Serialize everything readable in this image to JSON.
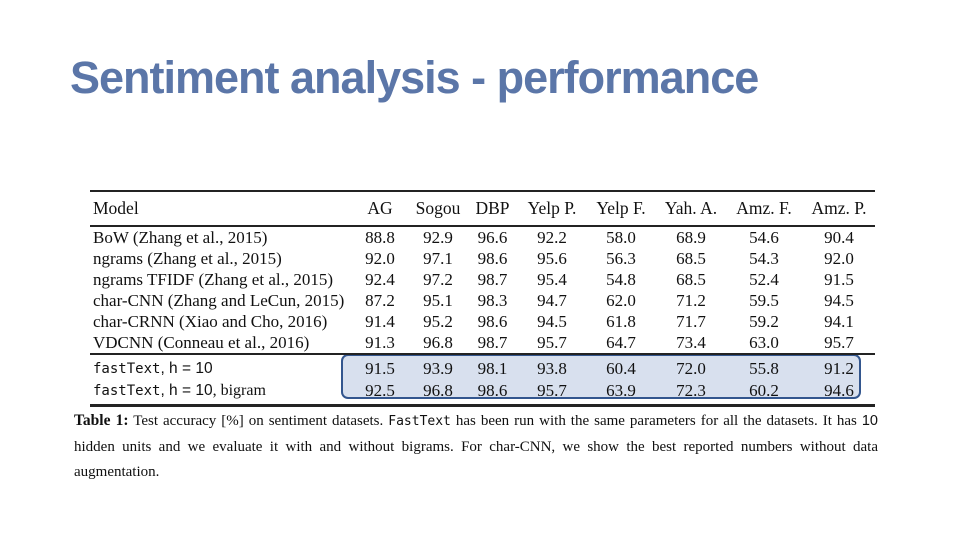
{
  "slide": {
    "title": "Sentiment analysis - performance"
  },
  "colors": {
    "title": "#5b76a8",
    "highlight_fill": "#d8e0ee",
    "highlight_border": "#33568e"
  },
  "table": {
    "columns": [
      "Model",
      "AG",
      "Sogou",
      "DBP",
      "Yelp P.",
      "Yelp F.",
      "Yah. A.",
      "Amz. F.",
      "Amz. P."
    ],
    "rows": [
      {
        "model": "BoW (Zhang et al., 2015)",
        "values": [
          "88.8",
          "92.9",
          "96.6",
          "92.2",
          "58.0",
          "68.9",
          "54.6",
          "90.4"
        ]
      },
      {
        "model": "ngrams (Zhang et al., 2015)",
        "values": [
          "92.0",
          "97.1",
          "98.6",
          "95.6",
          "56.3",
          "68.5",
          "54.3",
          "92.0"
        ]
      },
      {
        "model": "ngrams TFIDF (Zhang et al., 2015)",
        "values": [
          "92.4",
          "97.2",
          "98.7",
          "95.4",
          "54.8",
          "68.5",
          "52.4",
          "91.5"
        ]
      },
      {
        "model": "char-CNN (Zhang and LeCun, 2015)",
        "values": [
          "87.2",
          "95.1",
          "98.3",
          "94.7",
          "62.0",
          "71.2",
          "59.5",
          "94.5"
        ]
      },
      {
        "model": "char-CRNN (Xiao and Cho, 2016)",
        "values": [
          "91.4",
          "95.2",
          "98.6",
          "94.5",
          "61.8",
          "71.7",
          "59.2",
          "94.1"
        ]
      },
      {
        "model": "VDCNN (Conneau et al., 2016)",
        "values": [
          "91.3",
          "96.8",
          "98.7",
          "95.7",
          "64.7",
          "73.4",
          "63.0",
          "95.7"
        ]
      }
    ],
    "fasttext_rows": [
      {
        "mono": "fastText",
        "sans": ", h = 10",
        "serif": "",
        "values": [
          "91.5",
          "93.9",
          "98.1",
          "93.8",
          "60.4",
          "72.0",
          "55.8",
          "91.2"
        ]
      },
      {
        "mono": "fastText",
        "sans": ", h = 10",
        "serif": ", bigram",
        "values": [
          "92.5",
          "96.8",
          "98.6",
          "95.7",
          "63.9",
          "72.3",
          "60.2",
          "94.6"
        ]
      }
    ]
  },
  "caption": {
    "label": "Table 1:",
    "seg1": " Test accuracy [%] on sentiment datasets. ",
    "code": "FastText",
    "seg2": " has been run with the same parameters for all the datasets. It has ",
    "num": "10",
    "seg3": " hidden units and we evaluate it with and without bigrams. For char-CNN, we show the best reported numbers without data augmentation."
  },
  "chart_data": {
    "type": "table",
    "title": "Table 1: Test accuracy [%] on sentiment datasets",
    "columns": [
      "Model",
      "AG",
      "Sogou",
      "DBP",
      "Yelp P.",
      "Yelp F.",
      "Yah. A.",
      "Amz. F.",
      "Amz. P."
    ],
    "rows": [
      [
        "BoW (Zhang et al., 2015)",
        88.8,
        92.9,
        96.6,
        92.2,
        58.0,
        68.9,
        54.6,
        90.4
      ],
      [
        "ngrams (Zhang et al., 2015)",
        92.0,
        97.1,
        98.6,
        95.6,
        56.3,
        68.5,
        54.3,
        92.0
      ],
      [
        "ngrams TFIDF (Zhang et al., 2015)",
        92.4,
        97.2,
        98.7,
        95.4,
        54.8,
        68.5,
        52.4,
        91.5
      ],
      [
        "char-CNN (Zhang and LeCun, 2015)",
        87.2,
        95.1,
        98.3,
        94.7,
        62.0,
        71.2,
        59.5,
        94.5
      ],
      [
        "char-CRNN (Xiao and Cho, 2016)",
        91.4,
        95.2,
        98.6,
        94.5,
        61.8,
        71.7,
        59.2,
        94.1
      ],
      [
        "VDCNN (Conneau et al., 2016)",
        91.3,
        96.8,
        98.7,
        95.7,
        64.7,
        73.4,
        63.0,
        95.7
      ],
      [
        "fastText, h = 10",
        91.5,
        93.9,
        98.1,
        93.8,
        60.4,
        72.0,
        55.8,
        91.2
      ],
      [
        "fastText, h = 10, bigram",
        92.5,
        96.8,
        98.6,
        95.7,
        63.9,
        72.3,
        60.2,
        94.6
      ]
    ],
    "highlighted_rows": [
      "fastText, h = 10",
      "fastText, h = 10, bigram"
    ]
  }
}
